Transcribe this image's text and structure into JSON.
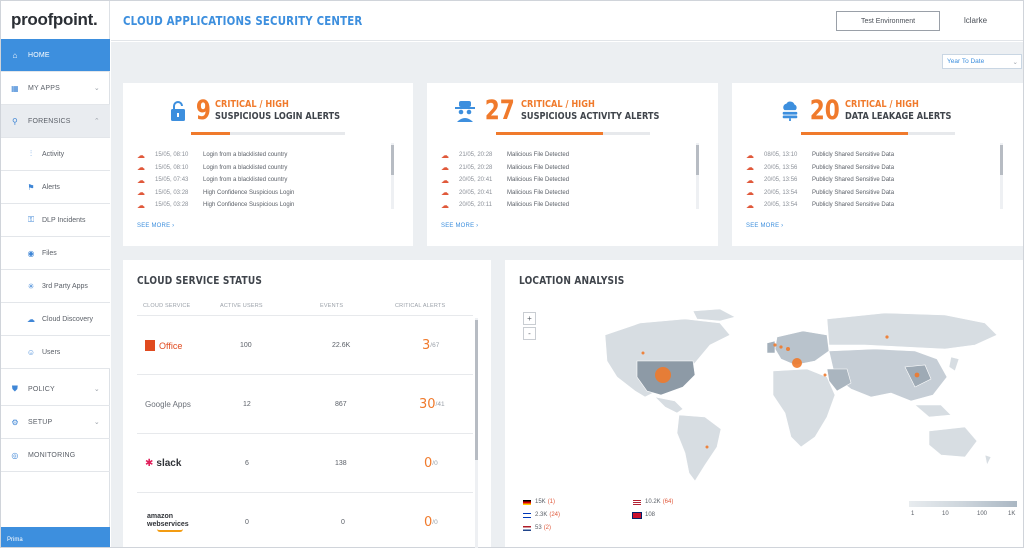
{
  "brand": {
    "logo_text": "proofpoint."
  },
  "header": {
    "title": "CLOUD APPLICATIONS SECURITY CENTER",
    "env_button": "Test Environment",
    "user": "lclarke"
  },
  "sidebar": {
    "items": [
      {
        "label": "HOME",
        "icon": "home-icon"
      },
      {
        "label": "MY APPS",
        "icon": "grid-icon"
      },
      {
        "label": "FORENSICS",
        "icon": "search-icon"
      },
      {
        "label": "Activity",
        "icon": "activity-icon"
      },
      {
        "label": "Alerts",
        "icon": "alerts-icon"
      },
      {
        "label": "DLP Incidents",
        "icon": "dlp-icon"
      },
      {
        "label": "Files",
        "icon": "files-icon"
      },
      {
        "label": "3rd Party Apps",
        "icon": "apps-icon"
      },
      {
        "label": "Cloud Discovery",
        "icon": "cloud-icon"
      },
      {
        "label": "Users",
        "icon": "users-icon"
      },
      {
        "label": "POLICY",
        "icon": "shield-icon"
      },
      {
        "label": "SETUP",
        "icon": "gear-icon"
      },
      {
        "label": "MONITORING",
        "icon": "monitor-icon"
      }
    ],
    "footer": "Prima"
  },
  "date_range": {
    "selected": "Year To Date"
  },
  "alert_cards": [
    {
      "count": "9",
      "label_line1": "CRITICAL / HIGH",
      "label_line2": "SUSPICIOUS LOGIN ALERTS",
      "progress": 0.25,
      "rows": [
        {
          "time": "15/05, 08:10",
          "text": "Login from a blacklisted country"
        },
        {
          "time": "15/05, 08:10",
          "text": "Login from a blacklisted country"
        },
        {
          "time": "15/05, 07:43",
          "text": "Login from a blacklisted country"
        },
        {
          "time": "15/05, 03:28",
          "text": "High Confidence Suspicious Login"
        },
        {
          "time": "15/05, 03:28",
          "text": "High Confidence Suspicious Login"
        }
      ],
      "see_more": "SEE MORE ›"
    },
    {
      "count": "27",
      "label_line1": "CRITICAL / HIGH",
      "label_line2": "SUSPICIOUS ACTIVITY ALERTS",
      "progress": 0.7,
      "rows": [
        {
          "time": "21/05, 20:28",
          "text": "Malicious File Detected"
        },
        {
          "time": "21/05, 20:28",
          "text": "Malicious File Detected"
        },
        {
          "time": "20/05, 20:41",
          "text": "Malicious File Detected"
        },
        {
          "time": "20/05, 20:41",
          "text": "Malicious File Detected"
        },
        {
          "time": "20/05, 20:11",
          "text": "Malicious File Detected"
        }
      ],
      "see_more": "SEE MORE ›"
    },
    {
      "count": "20",
      "label_line1": "CRITICAL / HIGH",
      "label_line2": "DATA LEAKAGE ALERTS",
      "progress": 0.7,
      "rows": [
        {
          "time": "08/05, 13:10",
          "text": "Publicly Shared Sensitive Data"
        },
        {
          "time": "20/05, 13:56",
          "text": "Publicly Shared Sensitive Data"
        },
        {
          "time": "20/05, 13:56",
          "text": "Publicly Shared Sensitive Data"
        },
        {
          "time": "20/05, 13:54",
          "text": "Publicly Shared Sensitive Data"
        },
        {
          "time": "20/05, 13:54",
          "text": "Publicly Shared Sensitive Data"
        }
      ],
      "see_more": "SEE MORE ›"
    }
  ],
  "cloud_status": {
    "title": "CLOUD SERVICE STATUS",
    "columns": [
      "CLOUD SERVICE",
      "ACTIVE USERS",
      "EVENTS",
      "CRITICAL ALERTS"
    ],
    "rows": [
      {
        "service": "Office",
        "users": "100",
        "events": "22.6K",
        "critical": "3",
        "total": "/67"
      },
      {
        "service": "Google Apps",
        "users": "12",
        "events": "867",
        "critical": "30",
        "total": "/41"
      },
      {
        "service": "slack",
        "users": "6",
        "events": "138",
        "critical": "0",
        "total": "/0"
      },
      {
        "service": "amazon webservices",
        "users": "0",
        "events": "0",
        "critical": "0",
        "total": "/0"
      }
    ]
  },
  "location": {
    "title": "LOCATION ANALYSIS",
    "zoom_in": "+",
    "zoom_out": "-",
    "legend": [
      {
        "flag": "de",
        "value": "15K",
        "crit": "(1)"
      },
      {
        "flag": "us",
        "value": "10.2K",
        "crit": "(64)"
      },
      {
        "flag": "il",
        "value": "2.3K",
        "crit": "(24)"
      },
      {
        "flag": "gb",
        "value": "108",
        "crit": ""
      },
      {
        "flag": "nl",
        "value": "53",
        "crit": "(2)"
      }
    ],
    "scale": [
      "1",
      "10",
      "100",
      "1K"
    ]
  },
  "colors": {
    "accent": "#3d8fde",
    "alert": "#f07a2c",
    "critical": "#e0583a"
  }
}
